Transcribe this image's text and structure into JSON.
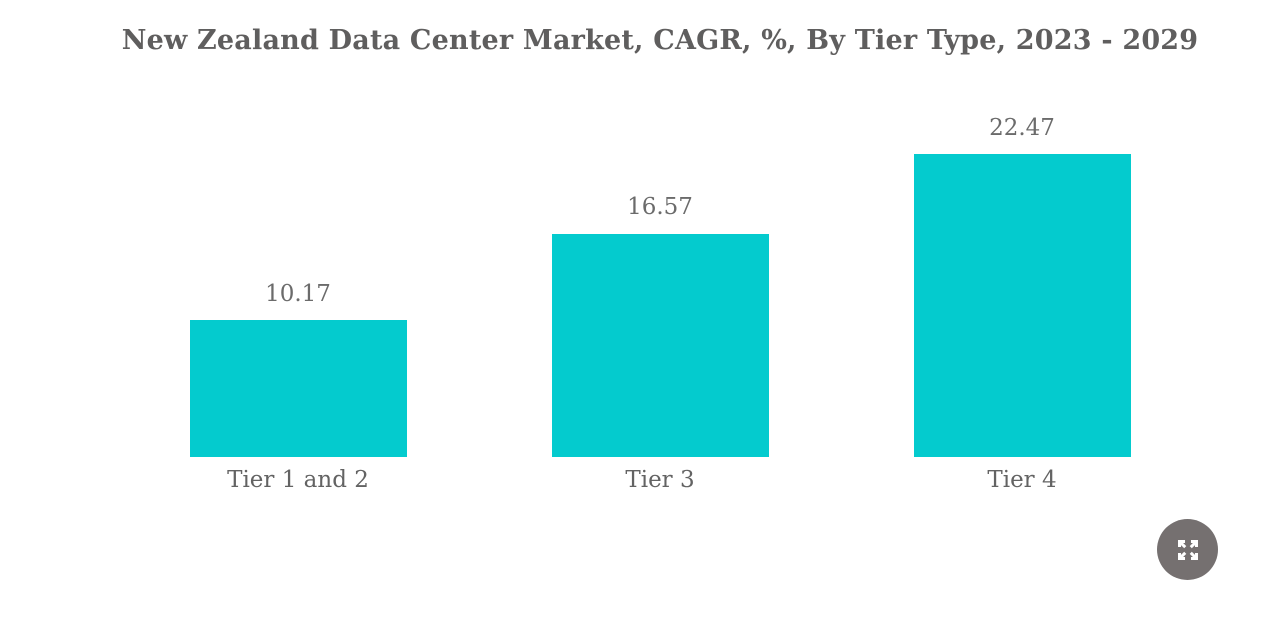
{
  "chart_data": {
    "type": "bar",
    "title": "New Zealand Data Center Market, CAGR, %, By Tier Type, 2023 - 2029",
    "categories": [
      "Tier 1 and 2",
      "Tier 3",
      "Tier 4"
    ],
    "values": [
      10.17,
      16.57,
      22.47
    ],
    "xlabel": "",
    "ylabel": "",
    "ylim": [
      0,
      22.47
    ],
    "grid": false,
    "legend": false,
    "value_labels_shown": true,
    "bar_color": "#04cbce",
    "title_color": "#5f5e5e",
    "value_label_color": "#6b6b6b",
    "category_label_color": "#636363"
  },
  "controls": {
    "expand_button_color": "#757070",
    "expand_icon": "fullscreen-expand-arrows"
  }
}
